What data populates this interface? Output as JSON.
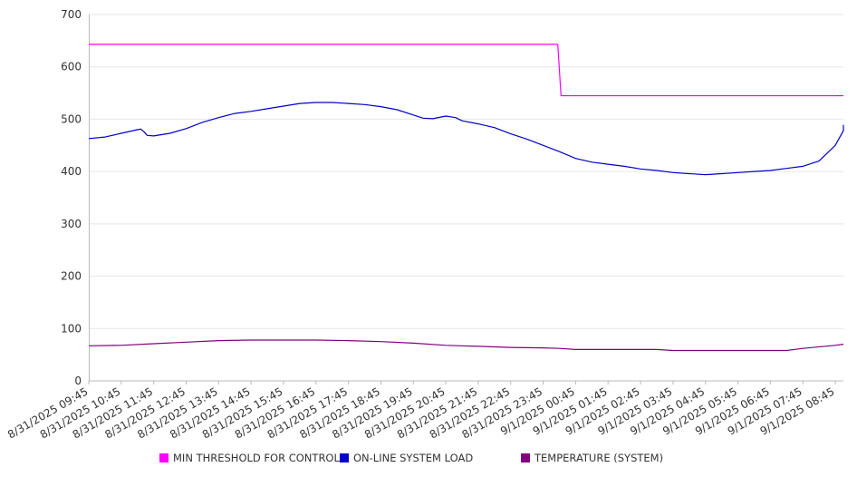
{
  "chart_data": {
    "type": "line",
    "ylim": [
      0,
      700
    ],
    "yticks": [
      0,
      100,
      200,
      300,
      400,
      500,
      600,
      700
    ],
    "xlim": [
      0,
      23.25
    ],
    "xlabels": [
      "8/31/2025 09:45",
      "8/31/2025 10:45",
      "8/31/2025 11:45",
      "8/31/2025 12:45",
      "8/31/2025 13:45",
      "8/31/2025 14:45",
      "8/31/2025 15:45",
      "8/31/2025 16:45",
      "8/31/2025 17:45",
      "8/31/2025 18:45",
      "8/31/2025 19:45",
      "8/31/2025 20:45",
      "8/31/2025 21:45",
      "8/31/2025 22:45",
      "8/31/2025 23:45",
      "9/1/2025 00:45",
      "9/1/2025 01:45",
      "9/1/2025 02:45",
      "9/1/2025 03:45",
      "9/1/2025 04:45",
      "9/1/2025 05:45",
      "9/1/2025 06:45",
      "9/1/2025 07:45",
      "9/1/2025 08:45"
    ],
    "grid": true,
    "legend_position": "bottom",
    "series": [
      {
        "name": "MIN THRESHOLD FOR CONTROL",
        "color": "#ff00ff",
        "points": [
          [
            0,
            643
          ],
          [
            14.45,
            643
          ],
          [
            14.55,
            545
          ],
          [
            23.25,
            545
          ]
        ]
      },
      {
        "name": "ON-LINE SYSTEM LOAD",
        "color": "#0000cc",
        "points": [
          [
            0,
            463
          ],
          [
            0.5,
            466
          ],
          [
            1,
            473
          ],
          [
            1.5,
            480
          ],
          [
            1.6,
            481
          ],
          [
            1.7,
            476
          ],
          [
            1.8,
            469
          ],
          [
            2,
            468
          ],
          [
            2.5,
            473
          ],
          [
            3,
            482
          ],
          [
            3.5,
            494
          ],
          [
            4,
            503
          ],
          [
            4.5,
            511
          ],
          [
            5,
            515
          ],
          [
            5.5,
            520
          ],
          [
            6,
            525
          ],
          [
            6.5,
            530
          ],
          [
            7,
            532
          ],
          [
            7.5,
            532
          ],
          [
            8,
            530
          ],
          [
            8.5,
            528
          ],
          [
            9,
            524
          ],
          [
            9.5,
            518
          ],
          [
            10,
            508
          ],
          [
            10.3,
            502
          ],
          [
            10.6,
            501
          ],
          [
            11,
            506
          ],
          [
            11.3,
            503
          ],
          [
            11.5,
            497
          ],
          [
            12,
            491
          ],
          [
            12.5,
            484
          ],
          [
            13,
            472
          ],
          [
            13.5,
            462
          ],
          [
            14,
            450
          ],
          [
            14.5,
            438
          ],
          [
            15,
            425
          ],
          [
            15.5,
            418
          ],
          [
            16,
            414
          ],
          [
            16.5,
            410
          ],
          [
            17,
            405
          ],
          [
            17.5,
            402
          ],
          [
            18,
            398
          ],
          [
            18.5,
            396
          ],
          [
            19,
            394
          ],
          [
            19.5,
            396
          ],
          [
            20,
            398
          ],
          [
            20.5,
            400
          ],
          [
            21,
            402
          ],
          [
            21.5,
            406
          ],
          [
            22,
            410
          ],
          [
            22.5,
            420
          ],
          [
            23,
            450
          ],
          [
            23.25,
            478
          ],
          [
            23.25,
            489
          ]
        ]
      },
      {
        "name": "TEMPERATURE (SYSTEM)",
        "color": "#800080",
        "points": [
          [
            0,
            67
          ],
          [
            1,
            68
          ],
          [
            2,
            71
          ],
          [
            3,
            74
          ],
          [
            4,
            77
          ],
          [
            5,
            78
          ],
          [
            6,
            78
          ],
          [
            7,
            78
          ],
          [
            8,
            77
          ],
          [
            9,
            75
          ],
          [
            10,
            72
          ],
          [
            11,
            68
          ],
          [
            12,
            66
          ],
          [
            13,
            64
          ],
          [
            14,
            63
          ],
          [
            14.5,
            62
          ],
          [
            15,
            60
          ],
          [
            16,
            60
          ],
          [
            17,
            60
          ],
          [
            17.5,
            60
          ],
          [
            18,
            58
          ],
          [
            19,
            58
          ],
          [
            20,
            58
          ],
          [
            21,
            58
          ],
          [
            21.5,
            58
          ],
          [
            22,
            62
          ],
          [
            23,
            68
          ],
          [
            23.25,
            70
          ]
        ]
      }
    ]
  }
}
